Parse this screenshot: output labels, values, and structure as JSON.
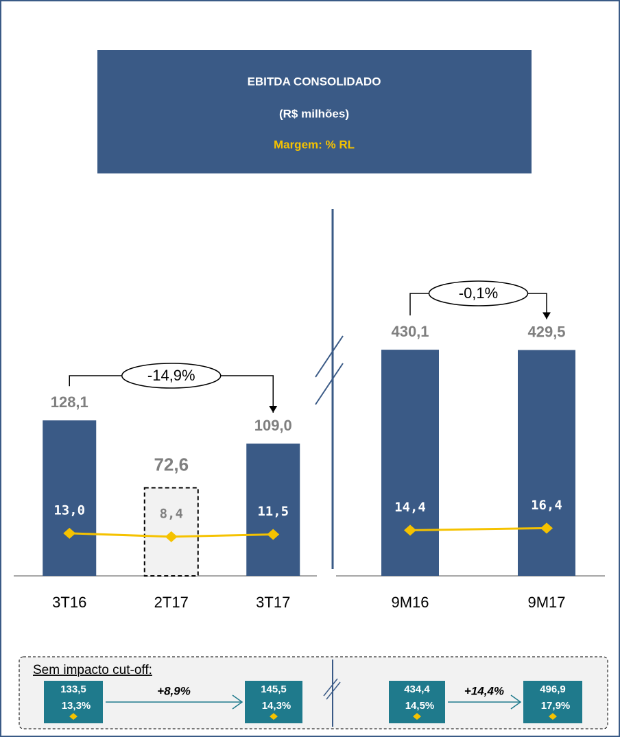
{
  "header": {
    "title": "EBITDA CONSOLIDADO",
    "subtitle": "(R$ milhões)",
    "note": "Margem: % RL"
  },
  "chart_data": [
    {
      "type": "bar",
      "categories": [
        "3T16",
        "2T17",
        "3T17"
      ],
      "ylim": [
        0,
        305
      ],
      "y2lim": [
        -44,
        451
      ],
      "dashed": [
        false,
        true,
        false
      ],
      "series": [
        {
          "color": "#3a5a86",
          "values": [
            128.1,
            72.6,
            109.0
          ],
          "value_labels": [
            "128,1",
            "72,6",
            "109,0"
          ]
        },
        {
          "type": "line",
          "axis": "y2",
          "color": "#f5c200",
          "values": [
            13.0,
            8.4,
            11.5
          ],
          "value_labels": [
            "13,0",
            "8,4",
            "11,5"
          ]
        }
      ],
      "annotations": [
        {
          "label": "-14,9%",
          "from": 0,
          "to": 2
        }
      ]
    },
    {
      "type": "bar",
      "categories": [
        "9M16",
        "9M17"
      ],
      "ylim": [
        0,
        704
      ],
      "y2lim": [
        -30,
        330
      ],
      "dashed": [
        false,
        false
      ],
      "series": [
        {
          "color": "#3a5a86",
          "values": [
            430.1,
            429.5
          ],
          "value_labels": [
            "430,1",
            "429,5"
          ]
        },
        {
          "type": "line",
          "axis": "y2",
          "color": "#f5c200",
          "values": [
            14.4,
            16.4
          ],
          "value_labels": [
            "14,4",
            "16,4"
          ]
        }
      ],
      "annotations": [
        {
          "label": "-0,1%",
          "from": 0,
          "to": 1
        }
      ]
    }
  ],
  "cutoff": {
    "title": "Sem impacto cut-off:",
    "items": [
      {
        "value": "133,5",
        "margin": "13,3%"
      },
      {
        "value": "145,5",
        "margin": "14,3%"
      },
      {
        "value": "434,4",
        "margin": "14,5%"
      },
      {
        "value": "496,9",
        "margin": "17,9%"
      }
    ],
    "changes": [
      "+8,9%",
      "+14,4%"
    ]
  }
}
